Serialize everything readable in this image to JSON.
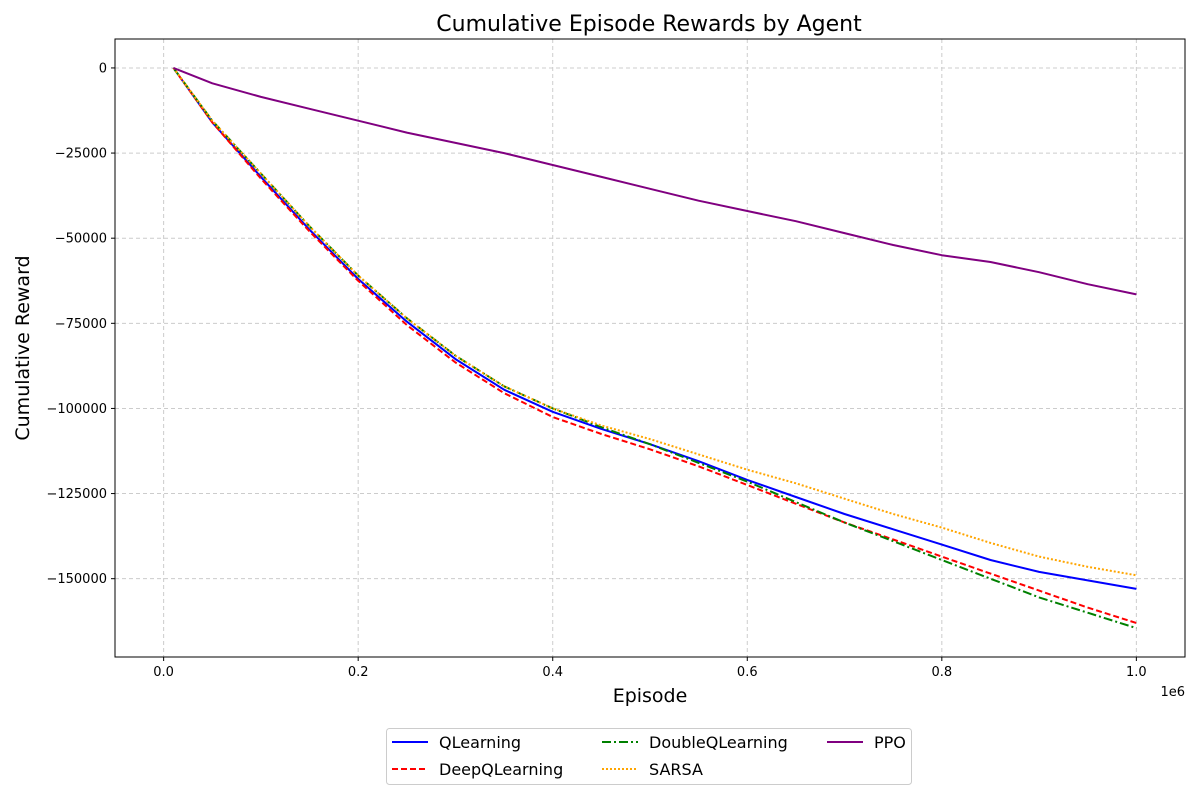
{
  "chart_data": {
    "type": "line",
    "title": "Cumulative Episode Rewards by Agent",
    "xlabel": "Episode",
    "ylabel": "Cumulative Reward",
    "x_offset_label": "1e6",
    "xlim": [
      -50000,
      1050000
    ],
    "ylim": [
      -173000,
      8500
    ],
    "x_ticks": [
      0,
      200000,
      400000,
      600000,
      800000,
      1000000
    ],
    "x_tick_labels": [
      "0.0",
      "0.2",
      "0.4",
      "0.6",
      "0.8",
      "1.0"
    ],
    "y_ticks": [
      0,
      -25000,
      -50000,
      -75000,
      -100000,
      -125000,
      -150000
    ],
    "y_tick_labels": [
      "0",
      "−25000",
      "−50000",
      "−75000",
      "−100000",
      "−125000",
      "−150000"
    ],
    "grid": true,
    "legend_position": "bottom-center",
    "x": [
      10000,
      50000,
      100000,
      150000,
      200000,
      250000,
      300000,
      350000,
      400000,
      450000,
      500000,
      550000,
      600000,
      650000,
      700000,
      750000,
      800000,
      850000,
      900000,
      950000,
      1000000
    ],
    "series": [
      {
        "name": "QLearning",
        "color": "#0000ff",
        "dash": "solid",
        "values": [
          0,
          -16000,
          -32000,
          -47500,
          -62000,
          -74500,
          -85500,
          -94500,
          -101000,
          -106000,
          -110500,
          -115500,
          -121000,
          -126000,
          -131000,
          -135500,
          -140000,
          -144500,
          -148000,
          -150500,
          -153000
        ]
      },
      {
        "name": "DeepQLearning",
        "color": "#ff0000",
        "dash": "dashed",
        "values": [
          0,
          -16000,
          -32500,
          -48000,
          -62500,
          -75500,
          -86500,
          -95500,
          -102500,
          -107500,
          -112000,
          -117000,
          -122500,
          -128000,
          -133500,
          -138500,
          -143500,
          -148500,
          -153500,
          -158500,
          -163000
        ]
      },
      {
        "name": "DoubleQLearning",
        "color": "#008000",
        "dash": "dashdot",
        "values": [
          0,
          -15500,
          -31000,
          -46500,
          -61000,
          -73500,
          -84500,
          -93500,
          -100000,
          -105500,
          -110500,
          -116000,
          -121500,
          -127500,
          -133500,
          -139000,
          -144500,
          -150000,
          -155500,
          -160000,
          -164500
        ]
      },
      {
        "name": "SARSA",
        "color": "#ffa500",
        "dash": "dotted",
        "values": [
          0,
          -15500,
          -31000,
          -46500,
          -61000,
          -73500,
          -84500,
          -93500,
          -100000,
          -105000,
          -109000,
          -113500,
          -118000,
          -122000,
          -126500,
          -131000,
          -135000,
          -139500,
          -143500,
          -146500,
          -149000
        ]
      },
      {
        "name": "PPO",
        "color": "#800080",
        "dash": "solid",
        "values": [
          0,
          -4500,
          -8500,
          -12000,
          -15500,
          -19000,
          -22000,
          -25000,
          -28500,
          -32000,
          -35500,
          -39000,
          -42000,
          -45000,
          -48500,
          -52000,
          -55000,
          -57000,
          -60000,
          -63500,
          -66500
        ]
      }
    ]
  }
}
